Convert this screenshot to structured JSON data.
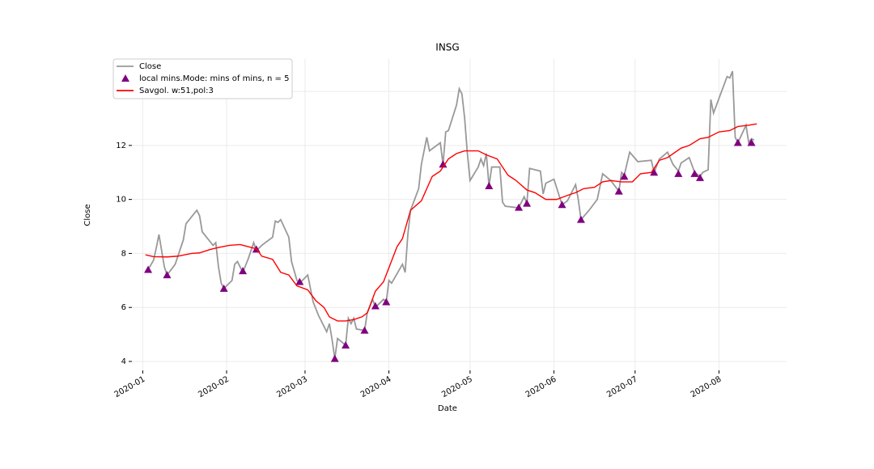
{
  "chart_data": {
    "type": "line",
    "title": "INSG",
    "x_label": "Date",
    "y_label": "Close",
    "xlim": [
      18258,
      18500
    ],
    "ylim": [
      3.67,
      15.2
    ],
    "xticks": [
      {
        "value": 18262,
        "label": "2020-01"
      },
      {
        "value": 18293,
        "label": "2020-02"
      },
      {
        "value": 18322,
        "label": "2020-03"
      },
      {
        "value": 18353,
        "label": "2020-04"
      },
      {
        "value": 18383,
        "label": "2020-05"
      },
      {
        "value": 18414,
        "label": "2020-06"
      },
      {
        "value": 18444,
        "label": "2020-07"
      },
      {
        "value": 18475,
        "label": "2020-08"
      }
    ],
    "yticks": [
      4,
      6,
      8,
      10,
      12,
      14
    ],
    "grid": true,
    "legend": "upper left",
    "series": [
      {
        "name": "Close",
        "type": "line",
        "color": "#999999",
        "x": [
          18263,
          18264,
          18266,
          18267,
          18268,
          18270,
          18271,
          18274,
          18277,
          18278,
          18282,
          18283,
          18284,
          18288,
          18289,
          18290,
          18291,
          18292,
          18295,
          18296,
          18297,
          18299,
          18301,
          18303,
          18304,
          18306,
          18310,
          18311,
          18312,
          18313,
          18316,
          18317,
          18319,
          18320,
          18323,
          18325,
          18327,
          18330,
          18331,
          18332,
          18333,
          18334,
          18337,
          18338,
          18339,
          18340,
          18341,
          18344,
          18345,
          18347,
          18348,
          18351,
          18352,
          18353,
          18354,
          18358,
          18359,
          18360,
          18361,
          18364,
          18365,
          18367,
          18368,
          18372,
          18373,
          18374,
          18375,
          18378,
          18379,
          18380,
          18381,
          18382,
          18383,
          18386,
          18387,
          18388,
          18389,
          18390,
          18391,
          18394,
          18395,
          18396,
          18400,
          18401,
          18403,
          18404,
          18405,
          18409,
          18410,
          18411,
          18414,
          18417,
          18419,
          18422,
          18423,
          18424,
          18427,
          18430,
          18432,
          18435,
          18438,
          18439,
          18440,
          18442,
          18445,
          18450,
          18451,
          18453,
          18456,
          18458,
          18460,
          18461,
          18464,
          18466,
          18468,
          18469,
          18471,
          18472,
          18473,
          18478,
          18479,
          18480,
          18481,
          18482,
          18485,
          18486,
          18487,
          18488
        ],
        "values": [
          7.35,
          7.4,
          7.75,
          8.2,
          8.7,
          7.5,
          7.2,
          7.6,
          8.5,
          9.1,
          9.6,
          9.4,
          8.8,
          8.3,
          8.4,
          7.5,
          6.9,
          6.7,
          7.0,
          7.6,
          7.7,
          7.3,
          7.8,
          8.4,
          8.1,
          8.3,
          8.6,
          9.2,
          9.15,
          9.25,
          8.6,
          7.7,
          7.0,
          6.9,
          7.2,
          6.2,
          5.7,
          5.1,
          5.4,
          4.8,
          4.1,
          4.85,
          4.6,
          5.6,
          5.4,
          5.6,
          5.2,
          5.15,
          5.8,
          6.3,
          6.0,
          6.3,
          6.2,
          7.0,
          6.9,
          7.6,
          7.3,
          8.7,
          9.6,
          10.4,
          11.3,
          12.3,
          11.8,
          12.1,
          11.3,
          12.5,
          12.55,
          13.5,
          14.1,
          13.9,
          13.0,
          11.7,
          10.7,
          11.2,
          11.5,
          11.25,
          11.7,
          10.5,
          11.2,
          11.2,
          9.9,
          9.75,
          9.7,
          9.7,
          10.1,
          9.85,
          11.15,
          11.05,
          10.2,
          10.6,
          10.75,
          9.8,
          9.95,
          10.55,
          10.0,
          9.25,
          9.6,
          10.0,
          10.95,
          10.7,
          10.3,
          11.0,
          10.9,
          11.75,
          11.4,
          11.45,
          11.0,
          11.5,
          11.75,
          11.3,
          11.05,
          11.35,
          11.55,
          11.0,
          10.85,
          11.0,
          11.1,
          13.7,
          13.2,
          14.55,
          14.5,
          14.75,
          12.3,
          12.1,
          12.75,
          12.1,
          12.25,
          12.2
        ]
      },
      {
        "name": "local mins.Mode: mins of mins, n = 5",
        "type": "scatter",
        "color": "#800080",
        "x": [
          18264,
          18271,
          18292,
          18299,
          18304,
          18320,
          18333,
          18337,
          18344,
          18348,
          18352,
          18373,
          18390,
          18401,
          18404,
          18417,
          18424,
          18438,
          18440,
          18451,
          18460,
          18466,
          18468,
          18482,
          18487
        ],
        "values": [
          7.4,
          7.2,
          6.7,
          7.35,
          8.15,
          6.95,
          4.1,
          4.6,
          5.15,
          6.05,
          6.2,
          11.3,
          10.5,
          9.7,
          9.85,
          9.8,
          9.25,
          10.3,
          10.85,
          11.0,
          10.95,
          10.95,
          10.8,
          12.1,
          12.1
        ]
      },
      {
        "name": "Savgol. w:51,pol:3",
        "type": "line",
        "color": "#ff0000",
        "x": [
          18263,
          18266,
          18271,
          18275,
          18280,
          18283,
          18287,
          18290,
          18294,
          18298,
          18301,
          18304,
          18306,
          18310,
          18313,
          18316,
          18319,
          18323,
          18326,
          18329,
          18331,
          18334,
          18337,
          18340,
          18343,
          18345,
          18348,
          18351,
          18356,
          18358,
          18361,
          18365,
          18369,
          18372,
          18375,
          18378,
          18381,
          18386,
          18389,
          18393,
          18397,
          18400,
          18404,
          18407,
          18411,
          18415,
          18419,
          18422,
          18425,
          18429,
          18432,
          18435,
          18439,
          18443,
          18446,
          18450,
          18453,
          18456,
          18461,
          18464,
          18468,
          18471,
          18475,
          18479,
          18482,
          18486,
          18489
        ],
        "values": [
          7.95,
          7.88,
          7.87,
          7.9,
          8.0,
          8.02,
          8.15,
          8.22,
          8.3,
          8.33,
          8.25,
          8.17,
          7.9,
          7.78,
          7.3,
          7.2,
          6.8,
          6.65,
          6.25,
          6.0,
          5.65,
          5.5,
          5.5,
          5.55,
          5.65,
          5.8,
          6.6,
          6.95,
          8.25,
          8.55,
          9.6,
          9.95,
          10.85,
          11.05,
          11.5,
          11.7,
          11.8,
          11.8,
          11.65,
          11.5,
          10.9,
          10.7,
          10.35,
          10.25,
          10.0,
          10.0,
          10.15,
          10.25,
          10.4,
          10.45,
          10.65,
          10.7,
          10.65,
          10.65,
          10.95,
          11.0,
          11.45,
          11.55,
          11.9,
          12.0,
          12.25,
          12.3,
          12.5,
          12.55,
          12.7,
          12.75,
          12.8
        ]
      }
    ]
  }
}
